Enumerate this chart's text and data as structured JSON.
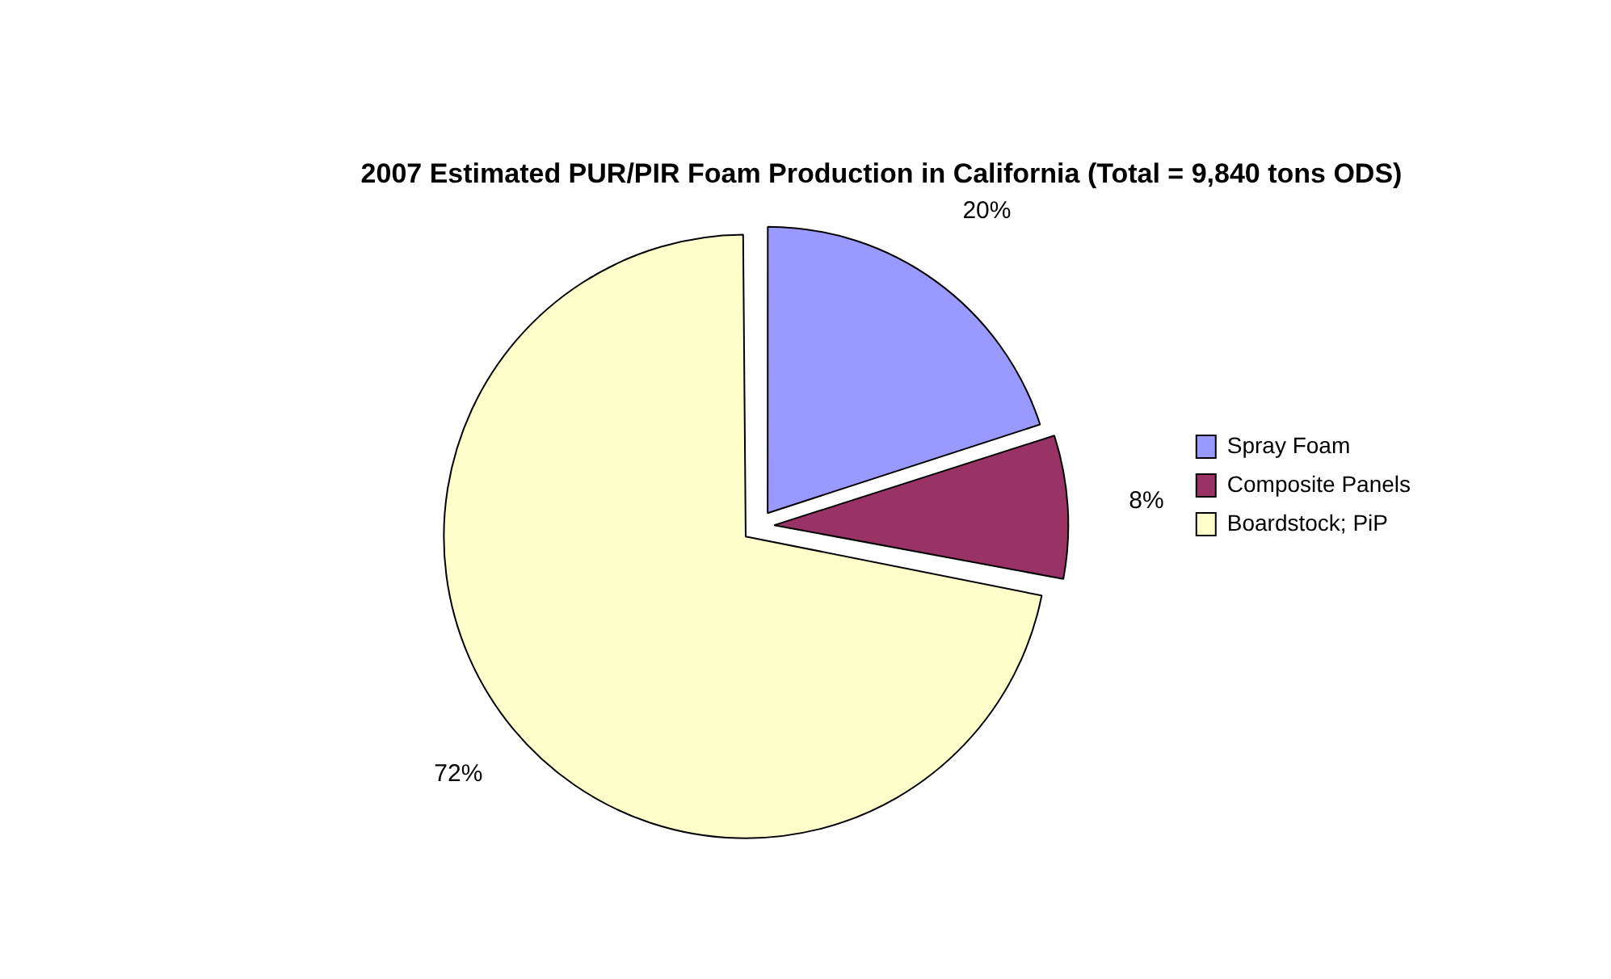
{
  "chart_data": {
    "type": "pie",
    "title": "2007 Estimated PUR/PIR Foam Production in California (Total = 9,840 tons ODS)",
    "categories": [
      "Spray Foam",
      "Composite Panels",
      "Boardstock; PiP"
    ],
    "values": [
      20,
      8,
      72
    ],
    "colors": [
      "#9999ff",
      "#993366",
      "#ffffcc"
    ],
    "value_labels": [
      "20%",
      "8%",
      "72%"
    ],
    "legend": "right"
  }
}
